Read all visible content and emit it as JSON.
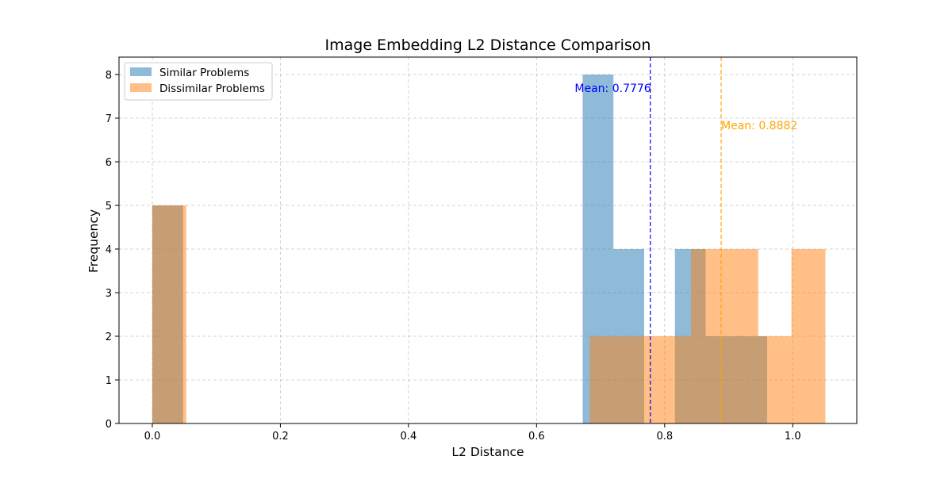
{
  "chart_data": {
    "type": "histogram",
    "title": "Image Embedding L2 Distance Comparison",
    "xlabel": "L2 Distance",
    "ylabel": "Frequency",
    "xlim": [
      -0.052,
      1.1
    ],
    "ylim": [
      0,
      8.4
    ],
    "xticks": [
      0.0,
      0.2,
      0.4,
      0.6,
      0.8,
      1.0
    ],
    "xtick_labels": [
      "0.0",
      "0.2",
      "0.4",
      "0.6",
      "0.8",
      "1.0"
    ],
    "yticks": [
      0,
      1,
      2,
      3,
      4,
      5,
      6,
      7,
      8
    ],
    "ytick_labels": [
      "0",
      "1",
      "2",
      "3",
      "4",
      "5",
      "6",
      "7",
      "8"
    ],
    "grid": true,
    "legend_position": "top-left",
    "series": [
      {
        "name": "Similar Problems",
        "color": "#1f77b4",
        "bins": [
          {
            "x0": 0.0,
            "x1": 0.048,
            "count": 5
          },
          {
            "x0": 0.672,
            "x1": 0.72,
            "count": 8
          },
          {
            "x0": 0.72,
            "x1": 0.768,
            "count": 4
          },
          {
            "x0": 0.816,
            "x1": 0.864,
            "count": 4
          },
          {
            "x0": 0.864,
            "x1": 0.912,
            "count": 2
          },
          {
            "x0": 0.912,
            "x1": 0.96,
            "count": 2
          }
        ],
        "mean": 0.7776,
        "mean_label": "Mean: 0.7776",
        "mean_color": "#0000ff"
      },
      {
        "name": "Dissimilar Problems",
        "color": "#ff7f0e",
        "bins": [
          {
            "x0": 0.0,
            "x1": 0.053,
            "count": 5
          },
          {
            "x0": 0.683,
            "x1": 0.736,
            "count": 2
          },
          {
            "x0": 0.736,
            "x1": 0.788,
            "count": 2
          },
          {
            "x0": 0.788,
            "x1": 0.841,
            "count": 2
          },
          {
            "x0": 0.841,
            "x1": 0.893,
            "count": 4
          },
          {
            "x0": 0.893,
            "x1": 0.946,
            "count": 4
          },
          {
            "x0": 0.946,
            "x1": 0.998,
            "count": 2
          },
          {
            "x0": 0.998,
            "x1": 1.051,
            "count": 4
          }
        ],
        "mean": 0.8882,
        "mean_label": "Mean: 0.8882",
        "mean_color": "#ffa500"
      }
    ]
  }
}
